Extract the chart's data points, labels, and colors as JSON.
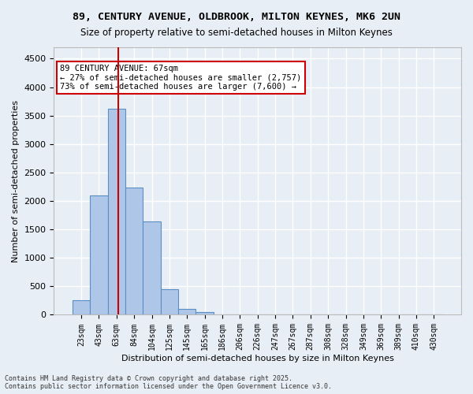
{
  "title1": "89, CENTURY AVENUE, OLDBROOK, MILTON KEYNES, MK6 2UN",
  "title2": "Size of property relative to semi-detached houses in Milton Keynes",
  "xlabel": "Distribution of semi-detached houses by size in Milton Keynes",
  "ylabel": "Number of semi-detached properties",
  "footnote": "Contains HM Land Registry data © Crown copyright and database right 2025.\nContains public sector information licensed under the Open Government Licence v3.0.",
  "bin_labels": [
    "23sqm",
    "43sqm",
    "63sqm",
    "84sqm",
    "104sqm",
    "125sqm",
    "145sqm",
    "165sqm",
    "186sqm",
    "206sqm",
    "226sqm",
    "247sqm",
    "267sqm",
    "287sqm",
    "308sqm",
    "328sqm",
    "349sqm",
    "369sqm",
    "389sqm",
    "410sqm",
    "430sqm"
  ],
  "bar_heights": [
    250,
    2100,
    3620,
    2230,
    1640,
    450,
    105,
    45,
    0,
    0,
    0,
    0,
    0,
    0,
    0,
    0,
    0,
    0,
    0,
    0,
    0
  ],
  "bar_color": "#aec6e8",
  "bar_edge_color": "#5a8fc4",
  "ylim": [
    0,
    4700
  ],
  "yticks": [
    0,
    500,
    1000,
    1500,
    2000,
    2500,
    3000,
    3500,
    4000,
    4500
  ],
  "vline_x_index": 2.1,
  "annotation_title": "89 CENTURY AVENUE: 67sqm",
  "annotation_line1": "← 27% of semi-detached houses are smaller (2,757)",
  "annotation_line2": "73% of semi-detached houses are larger (7,600) →",
  "annotation_box_color": "#ffffff",
  "annotation_box_edge": "#cc0000",
  "vline_color": "#cc0000",
  "background_color": "#e8eef5",
  "grid_color": "#ffffff"
}
